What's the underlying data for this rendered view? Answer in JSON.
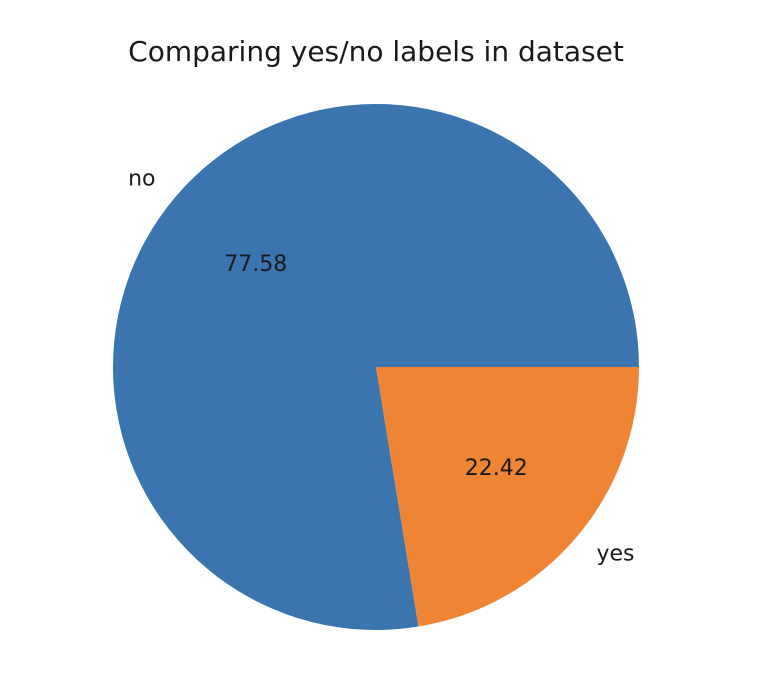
{
  "chart_data": {
    "type": "pie",
    "title": "Comparing yes/no labels in dataset",
    "categories": [
      "no",
      "yes"
    ],
    "values": [
      77.58,
      22.42
    ],
    "value_labels": [
      "77.58",
      "22.42"
    ],
    "colors": [
      "#3a75b0",
      "#ee8434"
    ],
    "start_angle_deg": 0,
    "direction": "counterclockwise",
    "legend": "none"
  }
}
